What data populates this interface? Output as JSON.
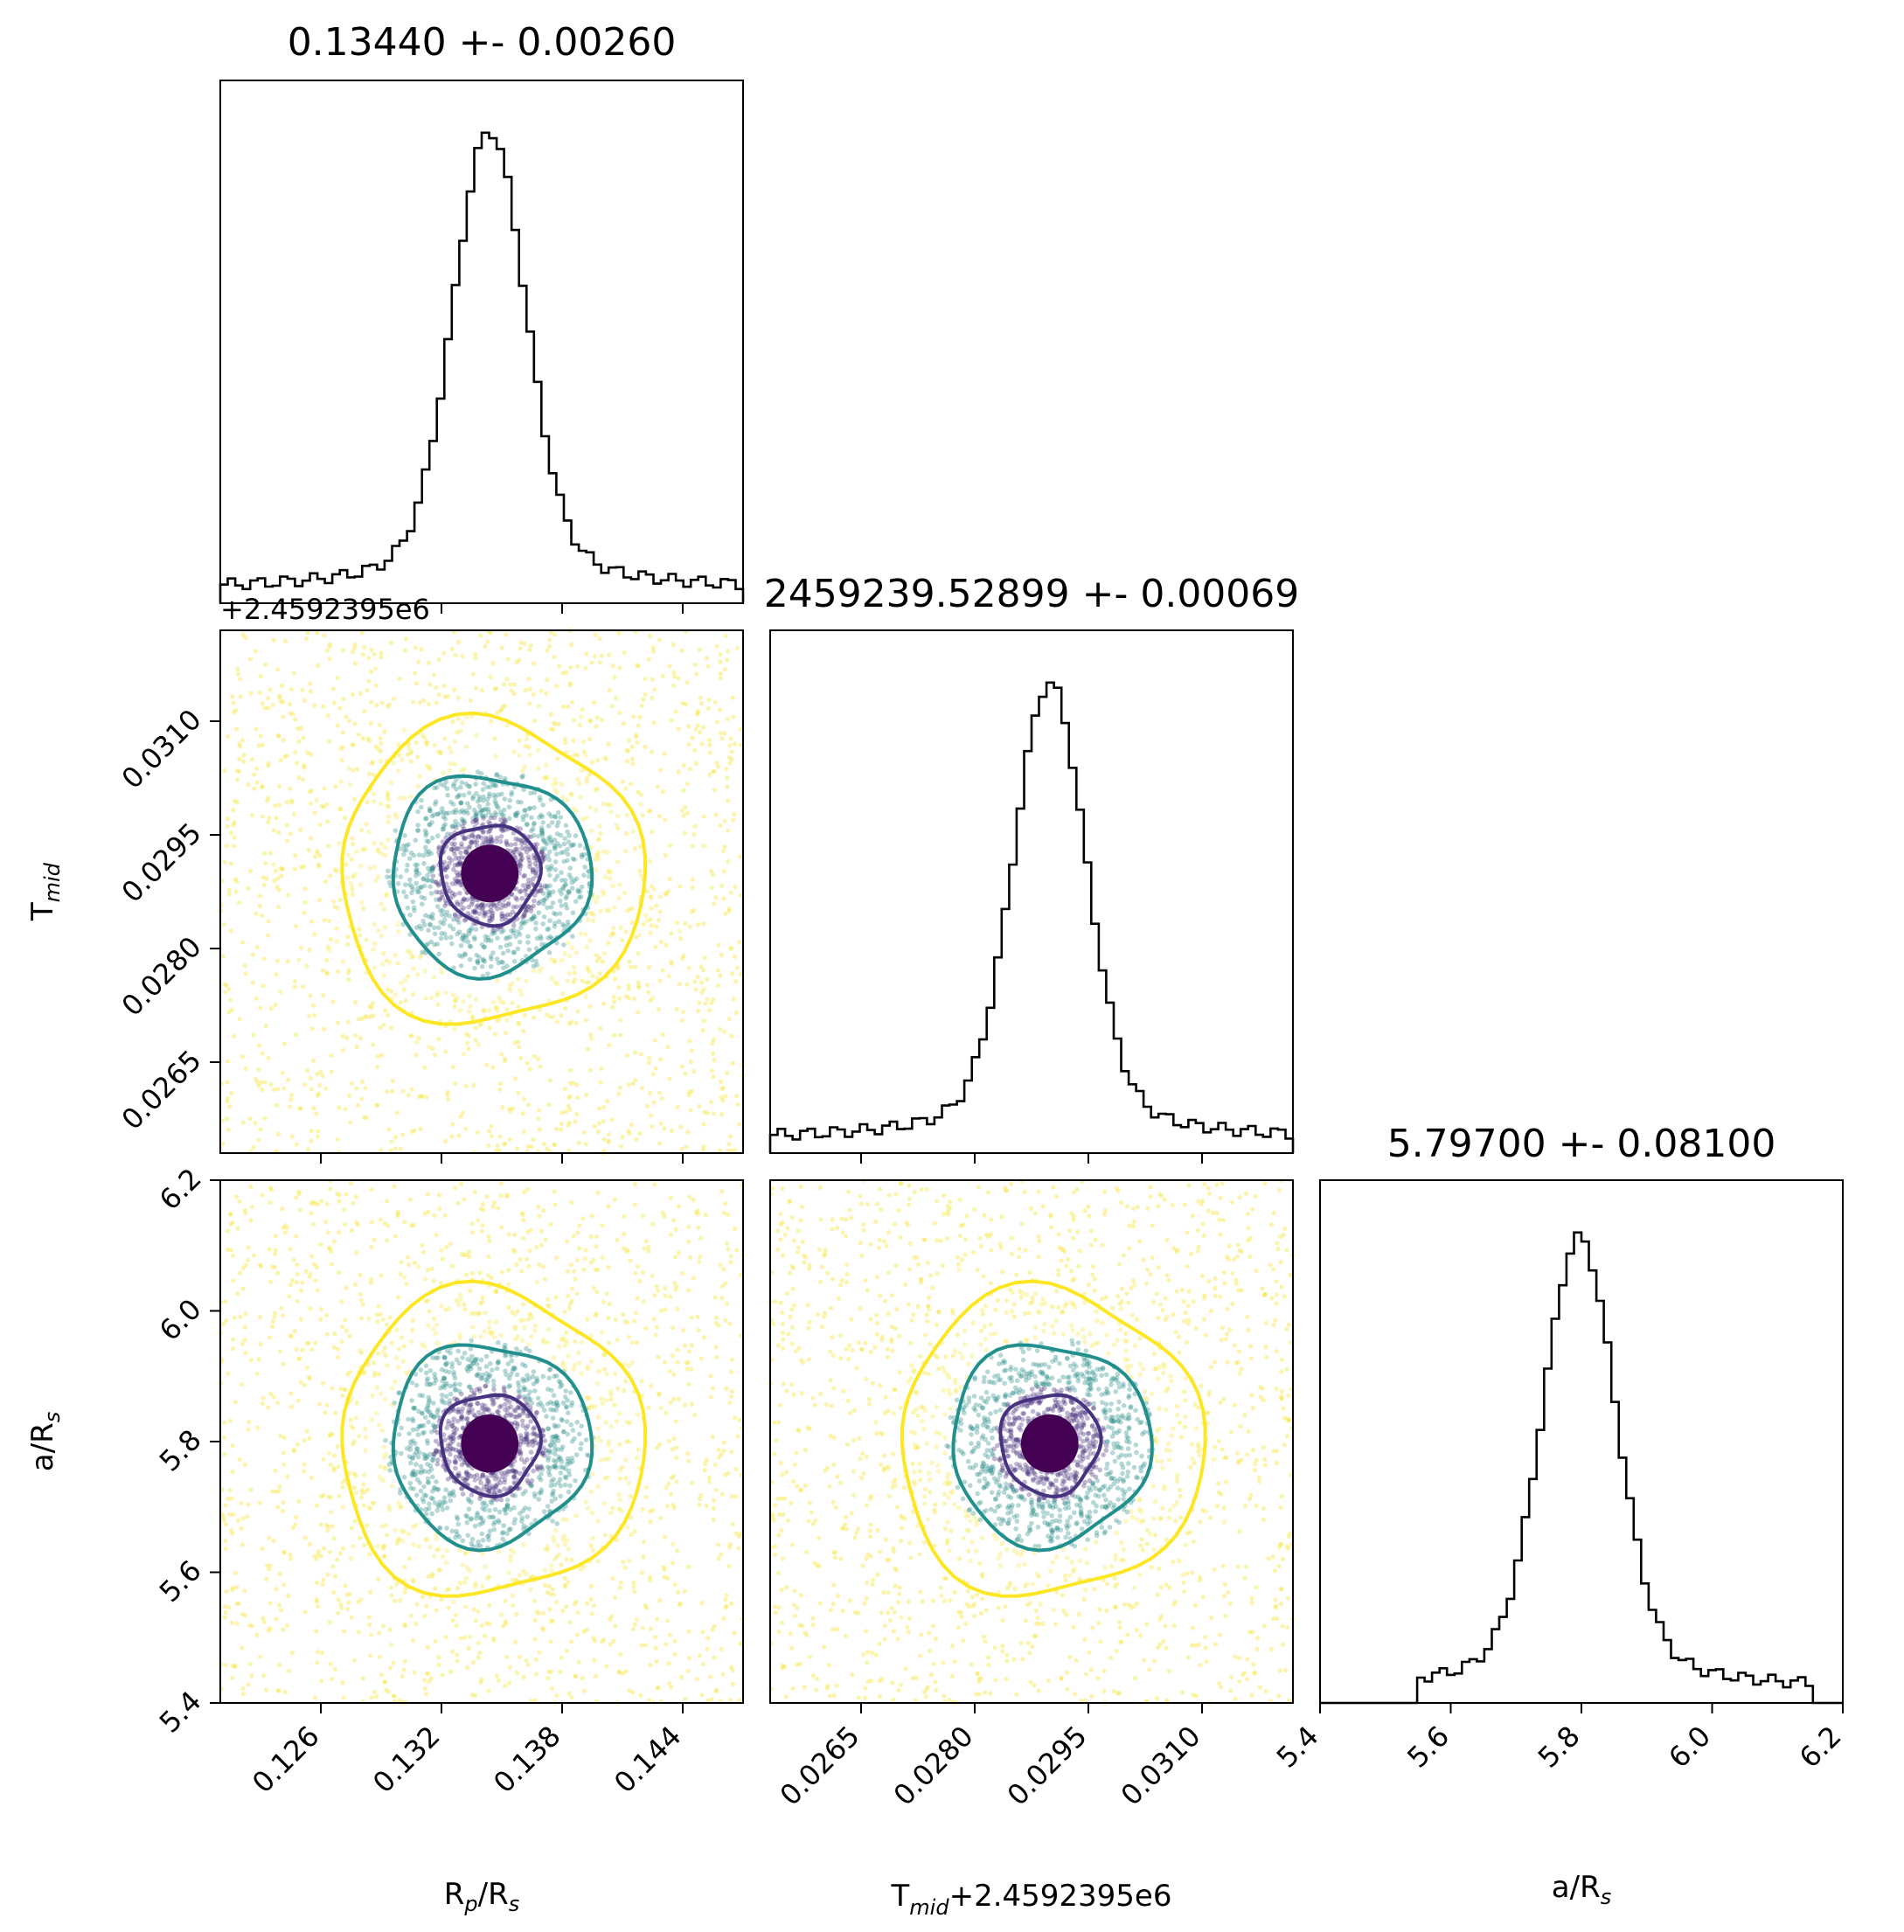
{
  "colors": {
    "level_inner": "#46327e",
    "level_mid": "#21908d",
    "level_outer": "#fde725",
    "core": "#440154",
    "points_outer": "#f6e74a",
    "points_mid": "#2c8f8a",
    "points_inner": "#47317c"
  },
  "chart_data": [
    {
      "type": "histogram",
      "panel": "hist-rp",
      "title": "0.13440 +- 0.00260",
      "xlim": [
        0.121,
        0.147
      ],
      "xticks": [
        0.126,
        0.132,
        0.138,
        0.144
      ],
      "values": {
        "center": 0.1344,
        "sigma": 0.0026
      }
    },
    {
      "type": "histogram",
      "panel": "hist-tmid",
      "title": "2459239.52899 +- 0.00069",
      "xlim": [
        0.0253,
        0.0322
      ],
      "xticks": [
        0.0265,
        0.028,
        0.0295,
        0.031
      ],
      "values": {
        "center": 2459239.52899,
        "sigma": 0.00069
      }
    },
    {
      "type": "histogram",
      "panel": "hist-ars",
      "title": "5.79700 +- 0.08100",
      "xlabel": "a/Rs",
      "xlim": [
        5.4,
        6.2
      ],
      "xticks": [
        "5.4",
        "5.6",
        "5.8",
        "6.0",
        "6.2"
      ],
      "values": {
        "center": 5.797,
        "sigma": 0.081,
        "support": [
          5.55,
          6.15
        ]
      }
    },
    {
      "type": "scatter",
      "panel": "scatter-rp-tmid",
      "ylabel": "Tmid",
      "y_offset": "+2.4592395e6",
      "xlim": [
        0.121,
        0.147
      ],
      "ylim": [
        0.0253,
        0.0322
      ],
      "yticks": [
        "0.0265",
        "0.0280",
        "0.0295",
        "0.0310"
      ],
      "center": [
        0.1344,
        0.02899
      ],
      "sigma": [
        0.0026,
        0.00069
      ]
    },
    {
      "type": "scatter",
      "panel": "scatter-rp-ars",
      "xlabel": "Rp/Rs",
      "ylabel": "a/Rs",
      "xlim": [
        0.121,
        0.147
      ],
      "ylim": [
        5.4,
        6.2
      ],
      "xticks": [
        "0.126",
        "0.132",
        "0.138",
        "0.144"
      ],
      "yticks": [
        "5.4",
        "5.6",
        "5.8",
        "6.0",
        "6.2"
      ],
      "center": [
        0.1344,
        5.797
      ],
      "sigma": [
        0.0026,
        0.081
      ]
    },
    {
      "type": "scatter",
      "panel": "scatter-tmid-ars",
      "xlabel": "Tmid",
      "x_offset": "+2.4592395e6",
      "xlim": [
        0.0253,
        0.0322
      ],
      "ylim": [
        5.4,
        6.2
      ],
      "xticks": [
        "0.0265",
        "0.0280",
        "0.0295",
        "0.0310"
      ],
      "center": [
        0.02899,
        5.797
      ],
      "sigma": [
        0.00069,
        0.081
      ]
    }
  ]
}
